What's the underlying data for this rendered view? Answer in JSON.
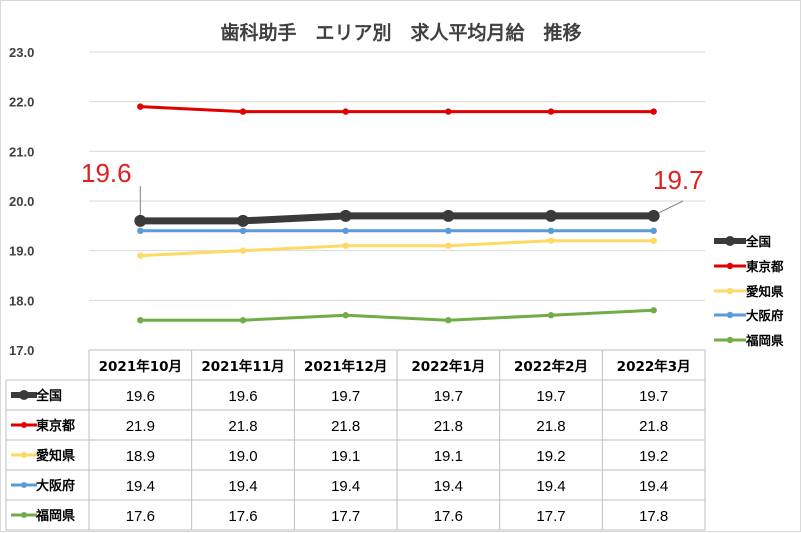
{
  "chart_data": {
    "type": "line",
    "title": "歯科助手　エリア別　求人平均月給　推移",
    "categories": [
      "2021年10月",
      "2021年11月",
      "2021年12月",
      "2022年1月",
      "2022年2月",
      "2022年3月"
    ],
    "ylim": [
      17.0,
      23.0
    ],
    "yticks": [
      "17.0",
      "18.0",
      "19.0",
      "20.0",
      "21.0",
      "22.0",
      "23.0"
    ],
    "grid": true,
    "legend_position": "right",
    "data_table": true,
    "series": [
      {
        "name": "全国",
        "color": "#3a3a3a",
        "values": [
          19.6,
          19.6,
          19.7,
          19.7,
          19.7,
          19.7
        ],
        "labels": [
          "19.6",
          "19.6",
          "19.7",
          "19.7",
          "19.7",
          "19.7"
        ]
      },
      {
        "name": "東京都",
        "color": "#e00000",
        "values": [
          21.9,
          21.8,
          21.8,
          21.8,
          21.8,
          21.8
        ],
        "labels": [
          "21.9",
          "21.8",
          "21.8",
          "21.8",
          "21.8",
          "21.8"
        ]
      },
      {
        "name": "愛知県",
        "color": "#ffd966",
        "values": [
          18.9,
          19.0,
          19.1,
          19.1,
          19.2,
          19.2
        ],
        "labels": [
          "18.9",
          "19.0",
          "19.1",
          "19.1",
          "19.2",
          "19.2"
        ]
      },
      {
        "name": "大阪府",
        "color": "#5b9bd5",
        "values": [
          19.4,
          19.4,
          19.4,
          19.4,
          19.4,
          19.4
        ],
        "labels": [
          "19.4",
          "19.4",
          "19.4",
          "19.4",
          "19.4",
          "19.4"
        ]
      },
      {
        "name": "福岡県",
        "color": "#70ad47",
        "values": [
          17.6,
          17.6,
          17.7,
          17.6,
          17.7,
          17.8
        ],
        "labels": [
          "17.6",
          "17.6",
          "17.7",
          "17.6",
          "17.7",
          "17.8"
        ]
      }
    ],
    "annotations": [
      {
        "text": "19.6",
        "series": "全国",
        "category": "2021年10月"
      },
      {
        "text": "19.7",
        "series": "全国",
        "category": "2022年3月"
      }
    ]
  }
}
